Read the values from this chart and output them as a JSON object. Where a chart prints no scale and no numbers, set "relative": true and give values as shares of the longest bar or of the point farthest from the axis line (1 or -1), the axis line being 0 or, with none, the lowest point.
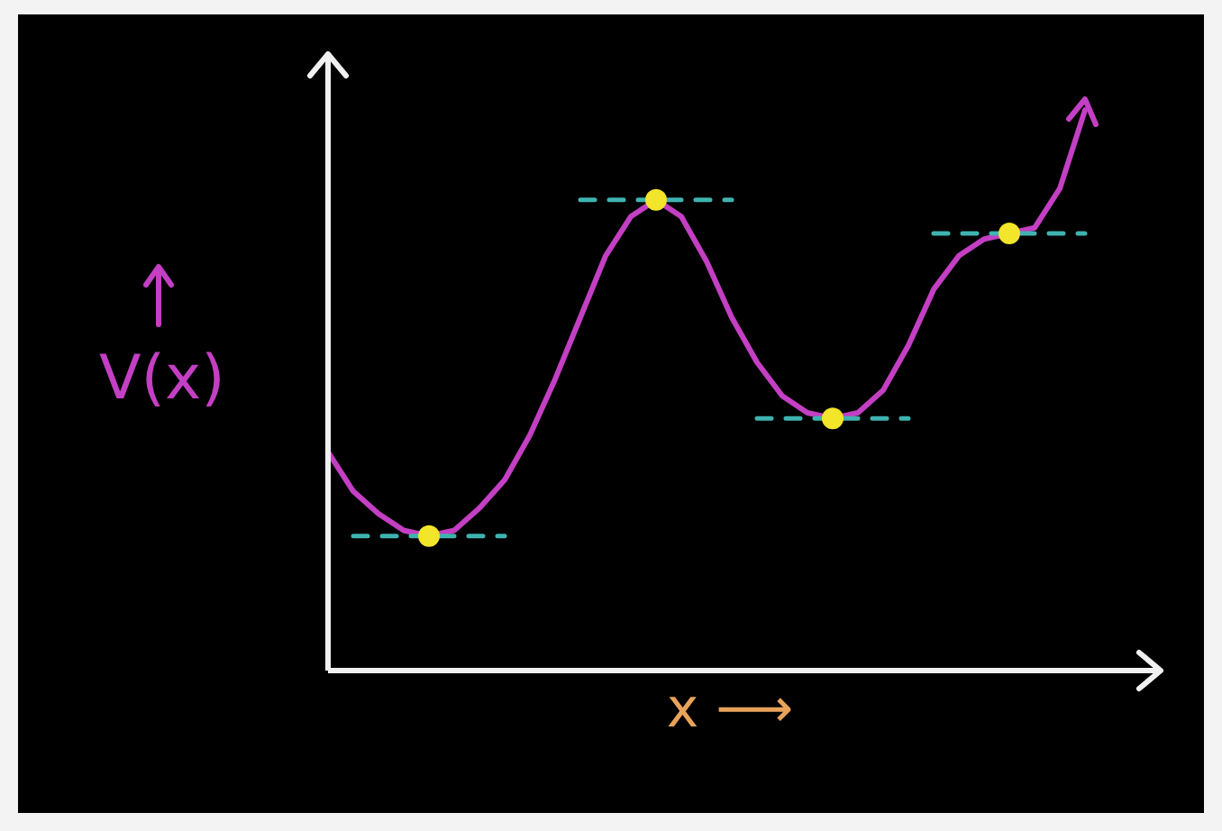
{
  "chart_data": {
    "type": "line",
    "relative": true,
    "xlabel": "x ⟶",
    "ylabel": "V(x)",
    "categories": [
      null,
      null,
      null,
      null,
      null,
      null,
      null,
      null,
      null,
      null,
      null,
      null,
      null,
      null,
      null,
      null,
      null,
      null,
      null,
      null,
      null,
      null,
      null,
      null,
      null,
      null,
      null,
      null,
      null,
      null,
      null
    ],
    "series": [
      {
        "color": "#c33fc3",
        "line_style": "solid",
        "values": [
          0.39,
          0.32,
          0.28,
          0.25,
          0.24,
          0.25,
          0.29,
          0.34,
          0.42,
          0.52,
          0.63,
          0.74,
          0.81,
          0.84,
          0.81,
          0.73,
          0.63,
          0.55,
          0.49,
          0.46,
          0.45,
          0.46,
          0.5,
          0.58,
          0.68,
          0.74,
          0.77,
          0.78,
          0.79,
          0.86,
          1
        ]
      },
      {
        "color": "#3fb3b0",
        "line_style": "dashed",
        "values": [
          null,
          0.24,
          0.24,
          0.24,
          0.24,
          0.24,
          0.24,
          0.24,
          null,
          null,
          null,
          null,
          null,
          null,
          null,
          null,
          null,
          null,
          null,
          null,
          null,
          null,
          null,
          null,
          null,
          null,
          null,
          null,
          null,
          null,
          null
        ]
      },
      {
        "color": "#3fb3b0",
        "line_style": "dashed",
        "values": [
          null,
          null,
          null,
          null,
          null,
          null,
          null,
          null,
          null,
          null,
          0.84,
          0.84,
          0.84,
          0.84,
          0.84,
          0.84,
          0.84,
          null,
          null,
          null,
          null,
          null,
          null,
          null,
          null,
          null,
          null,
          null,
          null,
          null,
          null
        ]
      },
      {
        "color": "#3fb3b0",
        "line_style": "dashed",
        "values": [
          null,
          null,
          null,
          null,
          null,
          null,
          null,
          null,
          null,
          null,
          null,
          null,
          null,
          null,
          null,
          null,
          null,
          0.45,
          0.45,
          0.45,
          0.45,
          0.45,
          0.45,
          0.45,
          null,
          null,
          null,
          null,
          null,
          null,
          null
        ]
      },
      {
        "color": "#3fb3b0",
        "line_style": "dashed",
        "values": [
          null,
          null,
          null,
          null,
          null,
          null,
          null,
          null,
          null,
          null,
          null,
          null,
          null,
          null,
          null,
          null,
          null,
          null,
          null,
          null,
          null,
          null,
          null,
          null,
          0.78,
          0.78,
          0.78,
          0.78,
          0.78,
          0.78,
          0.78
        ]
      }
    ]
  }
}
